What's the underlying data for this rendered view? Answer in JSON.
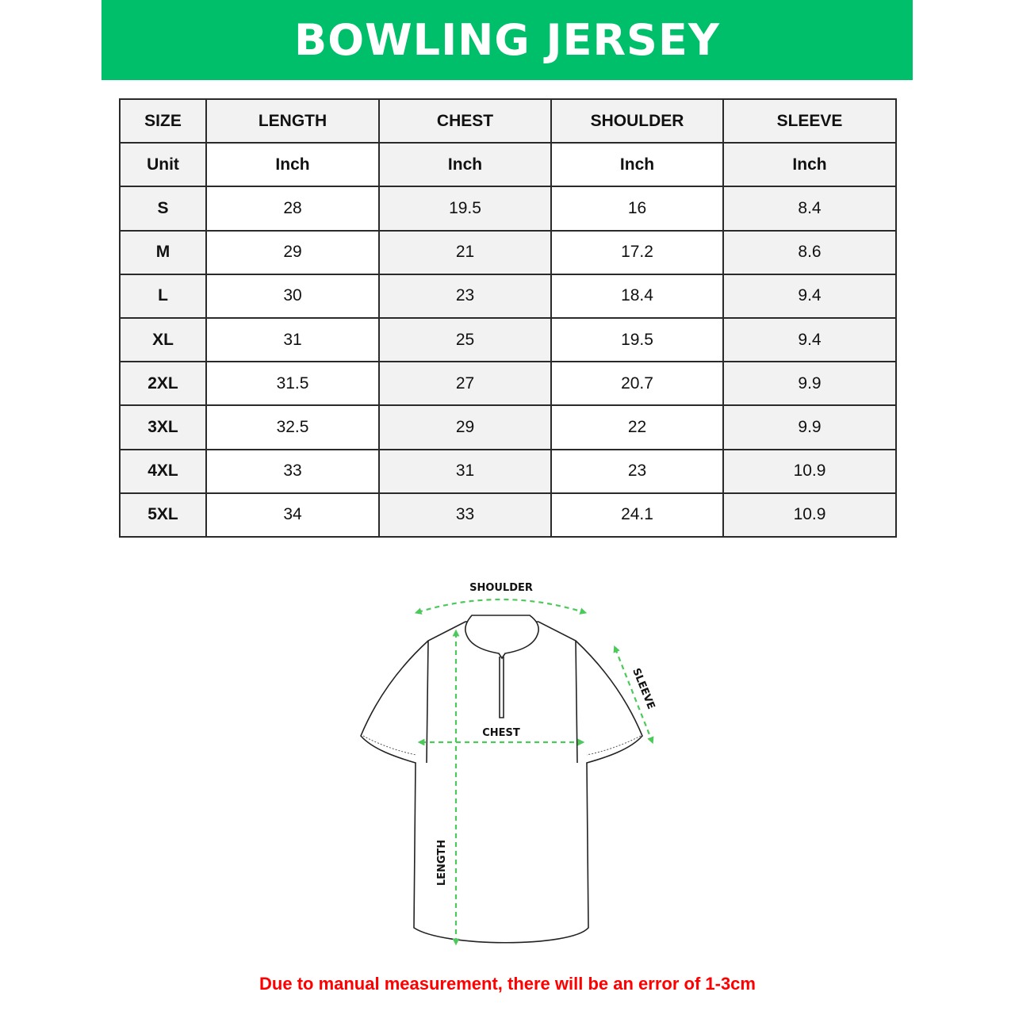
{
  "title": "BOWLING JERSEY",
  "colors": {
    "banner": "#00bf6b",
    "arrow": "#4cc95a",
    "note": "#ff0000"
  },
  "table": {
    "headers": [
      "SIZE",
      "LENGTH",
      "CHEST",
      "SHOULDER",
      "SLEEVE"
    ],
    "units": [
      "Unit",
      "Inch",
      "Inch",
      "Inch",
      "Inch"
    ],
    "rows": [
      [
        "S",
        "28",
        "19.5",
        "16",
        "8.4"
      ],
      [
        "M",
        "29",
        "21",
        "17.2",
        "8.6"
      ],
      [
        "L",
        "30",
        "23",
        "18.4",
        "9.4"
      ],
      [
        "XL",
        "31",
        "25",
        "19.5",
        "9.4"
      ],
      [
        "2XL",
        "31.5",
        "27",
        "20.7",
        "9.9"
      ],
      [
        "3XL",
        "32.5",
        "29",
        "22",
        "9.9"
      ],
      [
        "4XL",
        "33",
        "31",
        "23",
        "10.9"
      ],
      [
        "5XL",
        "34",
        "33",
        "24.1",
        "10.9"
      ]
    ]
  },
  "diagram": {
    "shoulder": "SHOULDER",
    "chest": "CHEST",
    "sleeve": "SLEEVE",
    "length": "LENGTH"
  },
  "note": "Due to manual measurement, there will be an error of 1-3cm"
}
